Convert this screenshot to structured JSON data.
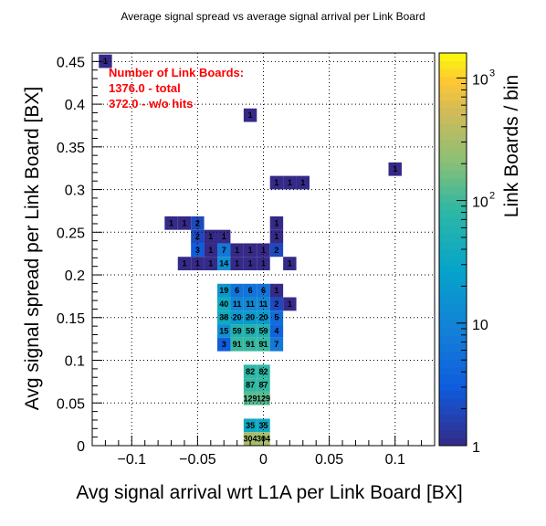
{
  "chart_data": {
    "type": "heatmap",
    "title": "Average signal spread vs average signal arrival per Link Board",
    "xlabel": "Avg signal arrival wrt L1A per Link Board [BX]",
    "ylabel": "Avg signal spread per Link Board [BX]",
    "zlabel": "Link Boards / bin",
    "xlim": [
      -0.13,
      0.13
    ],
    "ylim": [
      0,
      0.46
    ],
    "zlim": [
      1,
      1600
    ],
    "zscale": "log",
    "grid": true,
    "bin_width_x": 0.01,
    "bin_width_y": 0.0158,
    "x_ticks": [
      {
        "v": -0.1,
        "t": "−0.1"
      },
      {
        "v": -0.05,
        "t": "−0.05"
      },
      {
        "v": 0,
        "t": "0"
      },
      {
        "v": 0.05,
        "t": "0.05"
      },
      {
        "v": 0.1,
        "t": "0.1"
      }
    ],
    "y_ticks": [
      {
        "v": 0,
        "t": "0"
      },
      {
        "v": 0.05,
        "t": "0.05"
      },
      {
        "v": 0.1,
        "t": "0.1"
      },
      {
        "v": 0.15,
        "t": "0.15"
      },
      {
        "v": 0.2,
        "t": "0.2"
      },
      {
        "v": 0.25,
        "t": "0.25"
      },
      {
        "v": 0.3,
        "t": "0.3"
      },
      {
        "v": 0.35,
        "t": "0.35"
      },
      {
        "v": 0.4,
        "t": "0.4"
      },
      {
        "v": 0.45,
        "t": "0.45"
      }
    ],
    "z_ticks": [
      {
        "v": 1,
        "t": "1"
      },
      {
        "v": 10,
        "t": "10"
      },
      {
        "v": 100,
        "t": "10"
      },
      {
        "v": 1000,
        "t": "10"
      }
    ],
    "z_tick_exponents": [
      "",
      "",
      "2",
      "3"
    ],
    "annotation": [
      "Number of Link Boards:",
      "1376.0 - total",
      "372.0 - w/o hits"
    ],
    "cells": [
      {
        "x": -0.12,
        "y": 0.4503,
        "v": 1
      },
      {
        "x": -0.01,
        "y": 0.3871,
        "v": 1
      },
      {
        "x": 0.1,
        "y": 0.3239,
        "v": 1
      },
      {
        "x": 0.01,
        "y": 0.3081,
        "v": 1
      },
      {
        "x": 0.02,
        "y": 0.3081,
        "v": 1
      },
      {
        "x": 0.03,
        "y": 0.3081,
        "v": 1
      },
      {
        "x": -0.07,
        "y": 0.2607,
        "v": 1
      },
      {
        "x": -0.06,
        "y": 0.2607,
        "v": 1
      },
      {
        "x": -0.05,
        "y": 0.2607,
        "v": 2
      },
      {
        "x": 0.01,
        "y": 0.2607,
        "v": 1
      },
      {
        "x": -0.05,
        "y": 0.2449,
        "v": 2
      },
      {
        "x": -0.04,
        "y": 0.2449,
        "v": 1
      },
      {
        "x": -0.03,
        "y": 0.2449,
        "v": 1
      },
      {
        "x": 0.01,
        "y": 0.2449,
        "v": 1
      },
      {
        "x": -0.05,
        "y": 0.2291,
        "v": 3
      },
      {
        "x": -0.04,
        "y": 0.2291,
        "v": 1
      },
      {
        "x": -0.03,
        "y": 0.2291,
        "v": 7
      },
      {
        "x": -0.02,
        "y": 0.2291,
        "v": 1
      },
      {
        "x": -0.01,
        "y": 0.2291,
        "v": 1
      },
      {
        "x": 0,
        "y": 0.2291,
        "v": 1
      },
      {
        "x": 0.01,
        "y": 0.2291,
        "v": 2
      },
      {
        "x": -0.06,
        "y": 0.2133,
        "v": 1
      },
      {
        "x": -0.05,
        "y": 0.2133,
        "v": 1
      },
      {
        "x": -0.04,
        "y": 0.2133,
        "v": 1
      },
      {
        "x": -0.03,
        "y": 0.2133,
        "v": 14
      },
      {
        "x": -0.02,
        "y": 0.2133,
        "v": 1
      },
      {
        "x": -0.01,
        "y": 0.2133,
        "v": 1
      },
      {
        "x": 0,
        "y": 0.2133,
        "v": 1
      },
      {
        "x": 0.02,
        "y": 0.2133,
        "v": 1
      },
      {
        "x": -0.03,
        "y": 0.1817,
        "v": 19
      },
      {
        "x": -0.02,
        "y": 0.1817,
        "v": 6
      },
      {
        "x": -0.01,
        "y": 0.1817,
        "v": 6
      },
      {
        "x": 0,
        "y": 0.1817,
        "v": 6
      },
      {
        "x": 0.01,
        "y": 0.1817,
        "v": 1
      },
      {
        "x": -0.03,
        "y": 0.1659,
        "v": 40
      },
      {
        "x": -0.02,
        "y": 0.1659,
        "v": 11
      },
      {
        "x": -0.01,
        "y": 0.1659,
        "v": 11
      },
      {
        "x": 0,
        "y": 0.1659,
        "v": 11
      },
      {
        "x": 0.01,
        "y": 0.1659,
        "v": 2
      },
      {
        "x": 0.02,
        "y": 0.1659,
        "v": 1
      },
      {
        "x": -0.03,
        "y": 0.1501,
        "v": 38
      },
      {
        "x": -0.02,
        "y": 0.1501,
        "v": 20
      },
      {
        "x": -0.01,
        "y": 0.1501,
        "v": 20
      },
      {
        "x": 0,
        "y": 0.1501,
        "v": 20
      },
      {
        "x": 0.01,
        "y": 0.1501,
        "v": 5
      },
      {
        "x": -0.03,
        "y": 0.1343,
        "v": 15
      },
      {
        "x": -0.02,
        "y": 0.1343,
        "v": 59
      },
      {
        "x": -0.01,
        "y": 0.1343,
        "v": 59
      },
      {
        "x": 0,
        "y": 0.1343,
        "v": 59
      },
      {
        "x": 0.01,
        "y": 0.1343,
        "v": 4
      },
      {
        "x": -0.03,
        "y": 0.1185,
        "v": 3
      },
      {
        "x": -0.02,
        "y": 0.1185,
        "v": 91
      },
      {
        "x": -0.01,
        "y": 0.1185,
        "v": 91
      },
      {
        "x": 0,
        "y": 0.1185,
        "v": 91
      },
      {
        "x": 0.01,
        "y": 0.1185,
        "v": 7
      },
      {
        "x": -0.01,
        "y": 0.0869,
        "v": 82
      },
      {
        "x": 0,
        "y": 0.0869,
        "v": 82
      },
      {
        "x": -0.01,
        "y": 0.0711,
        "v": 87
      },
      {
        "x": 0,
        "y": 0.0711,
        "v": 87
      },
      {
        "x": -0.01,
        "y": 0.0553,
        "v": 129
      },
      {
        "x": 0,
        "y": 0.0553,
        "v": 129
      },
      {
        "x": -0.01,
        "y": 0.0237,
        "v": 35
      },
      {
        "x": 0,
        "y": 0.0237,
        "v": 35
      },
      {
        "x": -0.01,
        "y": 0.0079,
        "v": 304
      },
      {
        "x": 0,
        "y": 0.0079,
        "v": 304
      }
    ]
  }
}
